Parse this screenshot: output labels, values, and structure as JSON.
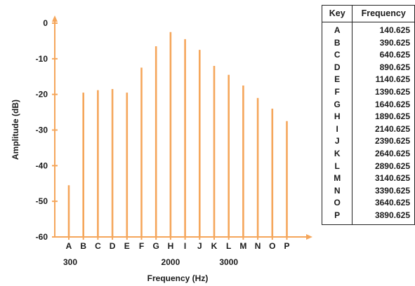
{
  "chart_data": {
    "type": "bar",
    "title": "",
    "xlabel": "Frequency (Hz)",
    "ylabel": "Amplitude (dB)",
    "ylim": [
      -60,
      0
    ],
    "yticks": [
      "0",
      "-10",
      "-20",
      "-30",
      "-40",
      "-50",
      "-60"
    ],
    "categories": [
      "A",
      "B",
      "C",
      "D",
      "E",
      "F",
      "G",
      "H",
      "I",
      "J",
      "K",
      "L",
      "M",
      "N",
      "O",
      "P"
    ],
    "values": [
      -45.5,
      -19.5,
      -18.8,
      -18.5,
      -19.5,
      -12.5,
      -6.5,
      -2.5,
      -4.5,
      -7.5,
      -12,
      -14.5,
      -17.5,
      -21,
      -24,
      -27.5
    ],
    "freq_marks": [
      {
        "label": "300",
        "category": "A"
      },
      {
        "label": "2000",
        "category": "H"
      },
      {
        "label": "3000",
        "category": "L"
      }
    ],
    "bar_color": "#F5A65B",
    "axis_color": "#F5A65B",
    "grid": false,
    "legend": "none"
  },
  "table": {
    "headers": [
      "Key",
      "Frequency"
    ],
    "rows": [
      [
        "A",
        "140.625"
      ],
      [
        "B",
        "390.625"
      ],
      [
        "C",
        "640.625"
      ],
      [
        "D",
        "890.625"
      ],
      [
        "E",
        "1140.625"
      ],
      [
        "F",
        "1390.625"
      ],
      [
        "G",
        "1640.625"
      ],
      [
        "H",
        "1890.625"
      ],
      [
        "I",
        "2140.625"
      ],
      [
        "J",
        "2390.625"
      ],
      [
        "K",
        "2640.625"
      ],
      [
        "L",
        "2890.625"
      ],
      [
        "M",
        "3140.625"
      ],
      [
        "N",
        "3390.625"
      ],
      [
        "O",
        "3640.625"
      ],
      [
        "P",
        "3890.625"
      ]
    ]
  }
}
